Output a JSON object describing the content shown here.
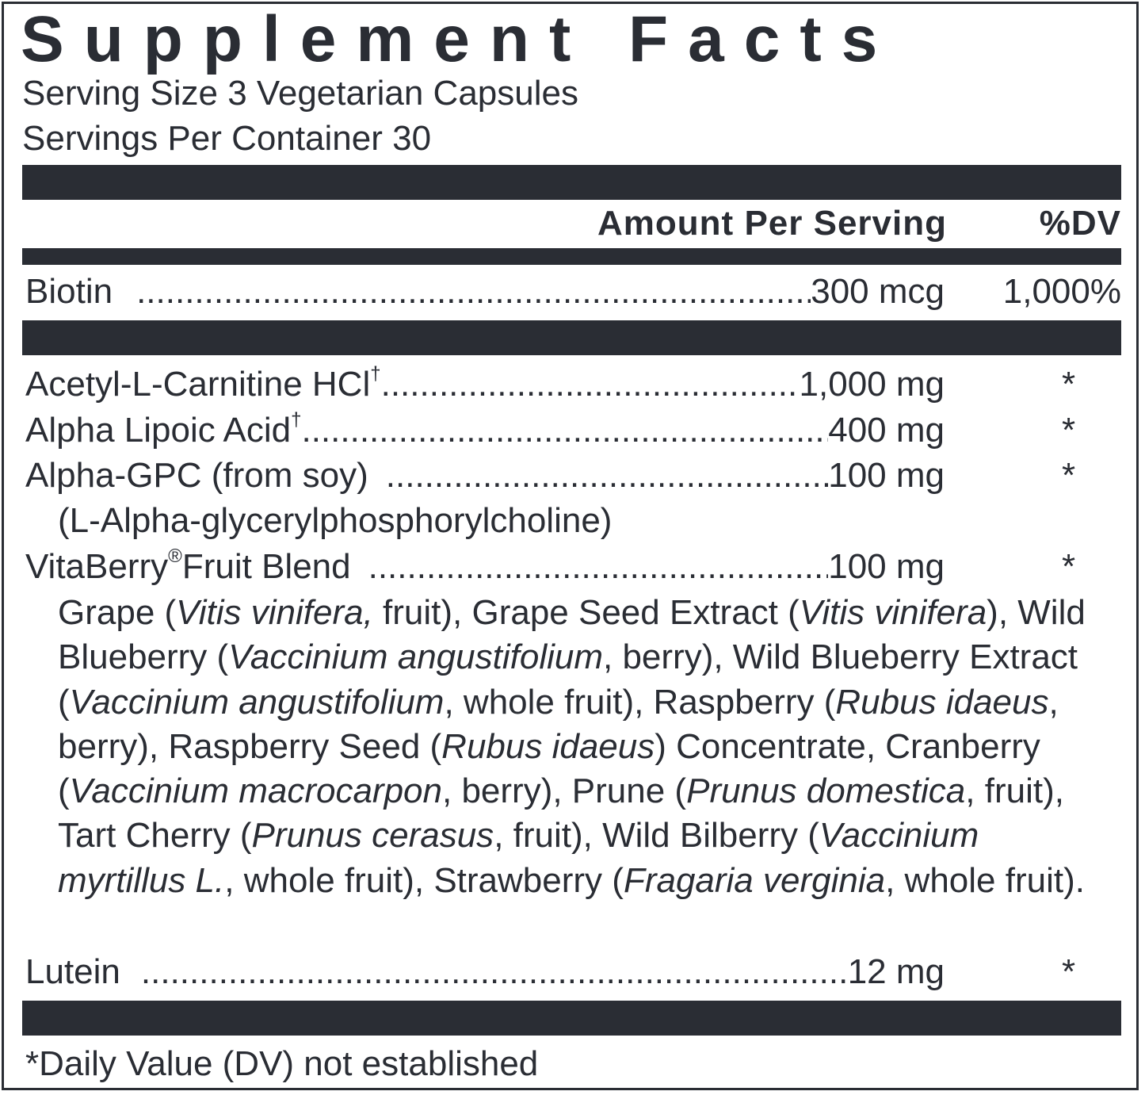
{
  "title": "Supplement Facts",
  "serving_size": "Serving Size 3 Vegetarian Capsules",
  "servings_per_container": "Servings Per Container 30",
  "header": {
    "amount": "Amount Per Serving",
    "dv": "%DV"
  },
  "colors": {
    "ink": "#2a2d34",
    "background": "#ffffff"
  },
  "biotin": {
    "name": "Biotin",
    "amount": "300 mcg",
    "dv": "1,000%"
  },
  "ingredients": [
    {
      "name": "Acetyl-L-Carnitine HCl",
      "mark": "†",
      "amount": "1,000 mg",
      "dv": "*"
    },
    {
      "name": "Alpha Lipoic Acid",
      "mark": "†",
      "amount": "400 mg",
      "dv": "*"
    },
    {
      "name": "Alpha-GPC (from soy)",
      "mark": "",
      "amount": "100 mg",
      "dv": "*",
      "subtitle": "(L-Alpha-glycerylphosphorylcholine)"
    },
    {
      "name": "VitaBerry",
      "mark": "®",
      "name2": "Fruit Blend",
      "amount": "100 mg",
      "dv": "*"
    }
  ],
  "blend_segments": [
    {
      "text": "Grape (",
      "italic": false
    },
    {
      "text": "Vitis vinifera,",
      "italic": true
    },
    {
      "text": " fruit), Grape Seed Extract (",
      "italic": false
    },
    {
      "text": "Vitis vinifera",
      "italic": true
    },
    {
      "text": "), Wild Blueberry (",
      "italic": false
    },
    {
      "text": "Vaccinium angustifolium",
      "italic": true
    },
    {
      "text": ", berry), Wild Blueberry Extract (",
      "italic": false
    },
    {
      "text": "Vaccinium angustifolium",
      "italic": true
    },
    {
      "text": ", whole fruit), Raspberry (",
      "italic": false
    },
    {
      "text": "Rubus idaeus",
      "italic": true
    },
    {
      "text": ", berry), Raspberry Seed (",
      "italic": false
    },
    {
      "text": "Rubus idaeus",
      "italic": true
    },
    {
      "text": ") Concentrate, Cranberry (",
      "italic": false
    },
    {
      "text": "Vaccinium macrocarpon",
      "italic": true
    },
    {
      "text": ", berry), Prune (",
      "italic": false
    },
    {
      "text": "Prunus domestica",
      "italic": true
    },
    {
      "text": ", fruit), Tart Cherry (",
      "italic": false
    },
    {
      "text": "Prunus cerasus",
      "italic": true
    },
    {
      "text": ", fruit), Wild Bilberry (",
      "italic": false
    },
    {
      "text": "Vaccinium myrtillus L.",
      "italic": true
    },
    {
      "text": ", whole fruit), Strawberry (",
      "italic": false
    },
    {
      "text": "Fragaria verginia",
      "italic": true
    },
    {
      "text": ", whole fruit).",
      "italic": false
    }
  ],
  "lutein": {
    "name": "Lutein",
    "amount": "12 mg",
    "dv": "*"
  },
  "footnote": "*Daily Value (DV) not established"
}
